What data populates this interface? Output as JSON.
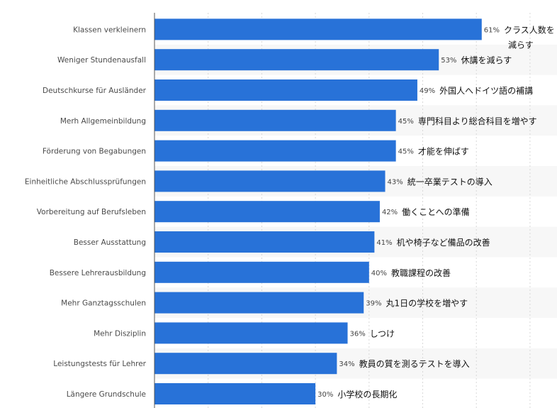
{
  "chart_data": {
    "type": "bar",
    "orientation": "horizontal",
    "categories": [
      "Klassen verkleinern",
      "Weniger Stundenausfall",
      "Deutschkurse für Ausländer",
      "Merh Allgemeinbildung",
      "Förderung von Begabungen",
      "Einheitliche Abschlussprüfungen",
      "Vorbereitung auf Berufsleben",
      "Besser Ausstattung",
      "Bessere Lehrerausbildung",
      "Mehr Ganztagsschulen",
      "Mehr Disziplin",
      "Leistungstests für Lehrer",
      "Längere Grundschule"
    ],
    "values": [
      61,
      53,
      49,
      45,
      45,
      43,
      42,
      41,
      40,
      39,
      36,
      34,
      30
    ],
    "value_labels": [
      "61%",
      "53%",
      "49%",
      "45%",
      "45%",
      "43%",
      "42%",
      "41%",
      "40%",
      "39%",
      "36%",
      "34%",
      "30%"
    ],
    "annotations": [
      [
        "クラス人数を",
        "減らす"
      ],
      [
        "休講を減らす"
      ],
      [
        "外国人へドイツ語の補講"
      ],
      [
        "専門科目より総合科目を増やす"
      ],
      [
        "才能を伸ばす"
      ],
      [
        "統一卒業テストの導入"
      ],
      [
        "働くことへの準備"
      ],
      [
        "机や椅子など備品の改善"
      ],
      [
        "教職課程の改善"
      ],
      [
        "丸1日の学校を増やす"
      ],
      [
        "しつけ"
      ],
      [
        "教員の質を測るテストを導入"
      ],
      [
        "小学校の長期化"
      ]
    ],
    "xlim": [
      0,
      70
    ],
    "grid": true,
    "bar_color": "#2872d8",
    "stripe_color": "#f7f7f7",
    "grid_color": "#d8d8d8"
  }
}
